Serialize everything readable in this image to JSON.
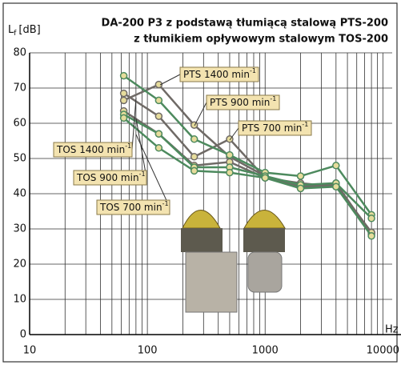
{
  "chart_data": {
    "type": "line",
    "title": "DA-200 P3 z podstawą tłumiącą stalową PTS-200",
    "subtitle": "z tłumikiem opływowym stalowym TOS-200",
    "ylabel": "L",
    "ylabel_sub": "f",
    "ylabel_unit": "[dB]",
    "xlabel": "Hz",
    "x": [
      63,
      125,
      250,
      500,
      1000,
      2000,
      4000,
      8000
    ],
    "xlim": [
      10,
      12000
    ],
    "ylim": [
      0,
      80
    ],
    "log_x": true,
    "grid": true,
    "xticks": [
      10,
      100,
      1000,
      10000
    ],
    "xminor": [
      20,
      30,
      40,
      50,
      60,
      70,
      80,
      90,
      200,
      300,
      400,
      500,
      600,
      700,
      800,
      900,
      2000,
      3000,
      4000,
      5000,
      6000,
      7000,
      8000,
      9000
    ],
    "yticks": [
      0,
      10,
      20,
      30,
      40,
      50,
      60,
      70,
      80
    ],
    "series": [
      {
        "name": "PTS 1400 min",
        "sup": "-1",
        "color": "#6f6a66",
        "values": [
          66.5,
          71,
          59.5,
          50.5,
          45,
          41.5,
          43,
          28.5
        ]
      },
      {
        "name": "PTS 900 min",
        "sup": "-1",
        "color": "#6f6a66",
        "values": [
          68.5,
          62,
          50.5,
          55.5,
          44.5,
          42,
          42.5,
          29
        ]
      },
      {
        "name": "PTS 700 min",
        "sup": "-1",
        "color": "#6f6a66",
        "values": [
          63.5,
          57,
          48,
          49,
          44.5,
          43,
          42,
          29
        ]
      },
      {
        "name": "TOS 1400 min",
        "sup": "-1",
        "color": "#4d8a5e",
        "values": [
          73.5,
          66.5,
          55.5,
          51,
          46,
          45,
          48,
          34
        ]
      },
      {
        "name": "TOS 900 min",
        "sup": "-1",
        "color": "#4d8a5e",
        "values": [
          62.5,
          57,
          47.5,
          47.5,
          45,
          42.5,
          43,
          33
        ]
      },
      {
        "name": "TOS 700 min",
        "sup": "-1",
        "color": "#4d8a5e",
        "values": [
          61.5,
          53,
          46.5,
          46,
          44.5,
          41.5,
          42,
          28
        ]
      }
    ]
  }
}
